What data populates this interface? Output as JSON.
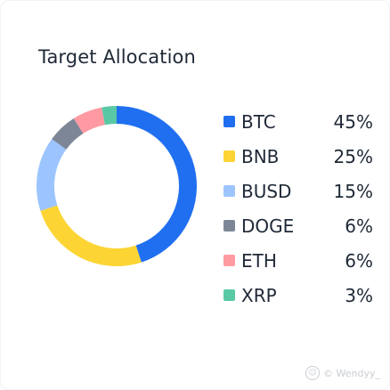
{
  "card": {
    "title": "Target Allocation"
  },
  "chart_data": {
    "type": "pie",
    "title": "Target Allocation",
    "series": [
      {
        "name": "BTC",
        "value": 45,
        "label": "45%",
        "color": "#1f6ff0"
      },
      {
        "name": "BNB",
        "value": 25,
        "label": "25%",
        "color": "#fcd535"
      },
      {
        "name": "BUSD",
        "value": 15,
        "label": "15%",
        "color": "#9cc5ff"
      },
      {
        "name": "DOGE",
        "value": 6,
        "label": "6%",
        "color": "#7c8696"
      },
      {
        "name": "ETH",
        "value": 6,
        "label": "6%",
        "color": "#ff9aa2"
      },
      {
        "name": "XRP",
        "value": 3,
        "label": "3%",
        "color": "#59c9a5"
      }
    ]
  },
  "watermark": {
    "text": "© Wendyy_"
  }
}
